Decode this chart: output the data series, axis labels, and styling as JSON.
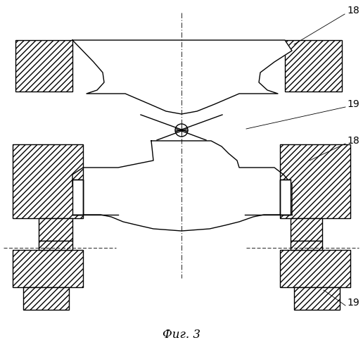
{
  "title": "Фиг. 3",
  "line_color": "#000000",
  "hatch_pattern": "////",
  "background": "#ffffff",
  "lw": 1.0,
  "thin_lw": 0.6
}
